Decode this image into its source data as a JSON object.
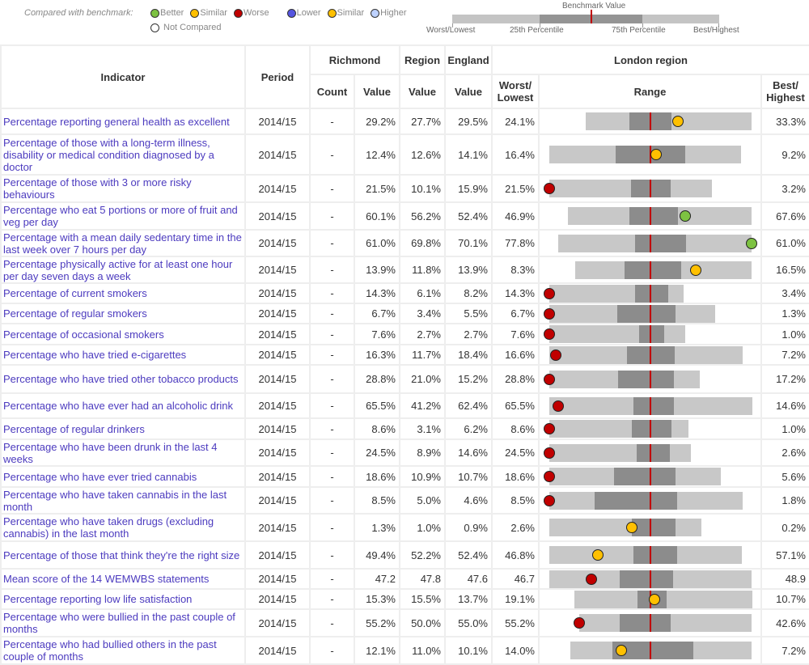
{
  "legend": {
    "label": "Compared with benchmark:",
    "items": [
      {
        "label": "Better",
        "color": "#7dc242"
      },
      {
        "label": "Similar",
        "color": "#ffc000"
      },
      {
        "label": "Worse",
        "color": "#c00000"
      },
      {
        "label": "Lower",
        "color": "#5555e0"
      },
      {
        "label": "Similar",
        "color": "#ffc000"
      },
      {
        "label": "Higher",
        "color": "#bed2ff"
      }
    ],
    "not_compared": {
      "label": "Not Compared",
      "color": "#ffffff"
    },
    "benchmark": {
      "title": "Benchmark Value",
      "labels": [
        "Worst/Lowest",
        "25th Percentile",
        "75th Percentile",
        "Best/Highest"
      ]
    }
  },
  "headers": {
    "indicator": "Indicator",
    "period": "Period",
    "richmond": "Richmond",
    "region": "Region",
    "england": "England",
    "london": "London region",
    "count": "Count",
    "value": "Value",
    "worst": "Worst/ Lowest",
    "range": "Range",
    "best": "Best/ Highest"
  },
  "colors": {
    "better": "#7dc242",
    "similar": "#ffc000",
    "worse": "#c00000",
    "benchmark_line": "#c00000",
    "spine_light": "#c8c8c8",
    "spine_dark": "#8c8c8c"
  },
  "rows": [
    {
      "indicator": "Percentage reporting general health as excellent",
      "period": "2014/15",
      "count": "-",
      "value": "29.2%",
      "region": "27.7%",
      "england": "29.5%",
      "worst": "24.1%",
      "best": "33.3%",
      "compare": "similar"
    },
    {
      "indicator": "Percentage of those with a long-term illness, disability or medical condition diagnosed by a doctor",
      "period": "2014/15",
      "count": "-",
      "value": "12.4%",
      "region": "12.6%",
      "england": "14.1%",
      "worst": "16.4%",
      "best": "9.2%",
      "compare": "similar"
    },
    {
      "indicator": "Percentage of those with 3 or more risky behaviours",
      "period": "2014/15",
      "count": "-",
      "value": "21.5%",
      "region": "10.1%",
      "england": "15.9%",
      "worst": "21.5%",
      "best": "3.2%",
      "compare": "worse"
    },
    {
      "indicator": "Percentage who eat 5 portions or more of fruit and veg per day",
      "period": "2014/15",
      "count": "-",
      "value": "60.1%",
      "region": "56.2%",
      "england": "52.4%",
      "worst": "46.9%",
      "best": "67.6%",
      "compare": "better"
    },
    {
      "indicator": "Percentage with a mean daily sedentary time in the last week over 7 hours per day",
      "period": "2014/15",
      "count": "-",
      "value": "61.0%",
      "region": "69.8%",
      "england": "70.1%",
      "worst": "77.8%",
      "best": "61.0%",
      "compare": "better"
    },
    {
      "indicator": "Percentage physically active for at least one hour per day seven days a week",
      "period": "2014/15",
      "count": "-",
      "value": "13.9%",
      "region": "11.8%",
      "england": "13.9%",
      "worst": "8.3%",
      "best": "16.5%",
      "compare": "similar"
    },
    {
      "indicator": "Percentage of current smokers",
      "period": "2014/15",
      "count": "-",
      "value": "14.3%",
      "region": "6.1%",
      "england": "8.2%",
      "worst": "14.3%",
      "best": "3.4%",
      "compare": "worse"
    },
    {
      "indicator": "Percentage of regular smokers",
      "period": "2014/15",
      "count": "-",
      "value": "6.7%",
      "region": "3.4%",
      "england": "5.5%",
      "worst": "6.7%",
      "best": "1.3%",
      "compare": "worse"
    },
    {
      "indicator": "Percentage of occasional smokers",
      "period": "2014/15",
      "count": "-",
      "value": "7.6%",
      "region": "2.7%",
      "england": "2.7%",
      "worst": "7.6%",
      "best": "1.0%",
      "compare": "worse"
    },
    {
      "indicator": "Percentage who have tried e-cigarettes",
      "period": "2014/15",
      "count": "-",
      "value": "16.3%",
      "region": "11.7%",
      "england": "18.4%",
      "worst": "16.6%",
      "best": "7.2%",
      "compare": "worse"
    },
    {
      "indicator": "Percentage who have tried other tobacco products",
      "period": "2014/15",
      "count": "-",
      "value": "28.8%",
      "region": "21.0%",
      "england": "15.2%",
      "worst": "28.8%",
      "best": "17.2%",
      "compare": "worse"
    },
    {
      "indicator": "Percentage who have ever had an alcoholic drink",
      "period": "2014/15",
      "count": "-",
      "value": "65.5%",
      "region": "41.2%",
      "england": "62.4%",
      "worst": "65.5%",
      "best": "14.6%",
      "compare": "worse"
    },
    {
      "indicator": "Percentage of regular drinkers",
      "period": "2014/15",
      "count": "-",
      "value": "8.6%",
      "region": "3.1%",
      "england": "6.2%",
      "worst": "8.6%",
      "best": "1.0%",
      "compare": "worse"
    },
    {
      "indicator": "Percentage who have been drunk in the last 4 weeks",
      "period": "2014/15",
      "count": "-",
      "value": "24.5%",
      "region": "8.9%",
      "england": "14.6%",
      "worst": "24.5%",
      "best": "2.6%",
      "compare": "worse"
    },
    {
      "indicator": "Percentage who have ever tried cannabis",
      "period": "2014/15",
      "count": "-",
      "value": "18.6%",
      "region": "10.9%",
      "england": "10.7%",
      "worst": "18.6%",
      "best": "5.6%",
      "compare": "worse"
    },
    {
      "indicator": "Percentage who have taken cannabis in the last month",
      "period": "2014/15",
      "count": "-",
      "value": "8.5%",
      "region": "5.0%",
      "england": "4.6%",
      "worst": "8.5%",
      "best": "1.8%",
      "compare": "worse"
    },
    {
      "indicator": "Percentage who have taken drugs (excluding cannabis) in the last month",
      "period": "2014/15",
      "count": "-",
      "value": "1.3%",
      "region": "1.0%",
      "england": "0.9%",
      "worst": "2.6%",
      "best": "0.2%",
      "compare": "similar"
    },
    {
      "indicator": "Percentage of those that think they're the right size",
      "period": "2014/15",
      "count": "-",
      "value": "49.4%",
      "region": "52.2%",
      "england": "52.4%",
      "worst": "46.8%",
      "best": "57.1%",
      "compare": "similar"
    },
    {
      "indicator": "Mean score of the 14 WEMWBS statements",
      "period": "2014/15",
      "count": "-",
      "value": "47.2",
      "region": "47.8",
      "england": "47.6",
      "worst": "46.7",
      "best": "48.9",
      "compare": "worse"
    },
    {
      "indicator": "Percentage reporting low life satisfaction",
      "period": "2014/15",
      "count": "-",
      "value": "15.3%",
      "region": "15.5%",
      "england": "13.7%",
      "worst": "19.1%",
      "best": "10.7%",
      "compare": "similar"
    },
    {
      "indicator": "Percentage who were bullied in the past couple of months",
      "period": "2014/15",
      "count": "-",
      "value": "55.2%",
      "region": "50.0%",
      "england": "55.0%",
      "worst": "55.2%",
      "best": "42.6%",
      "compare": "worse"
    },
    {
      "indicator": "Percentage who had bullied others in the past couple of months",
      "period": "2014/15",
      "count": "-",
      "value": "12.1%",
      "region": "11.0%",
      "england": "10.1%",
      "worst": "14.0%",
      "best": "7.2%",
      "compare": "similar"
    }
  ]
}
